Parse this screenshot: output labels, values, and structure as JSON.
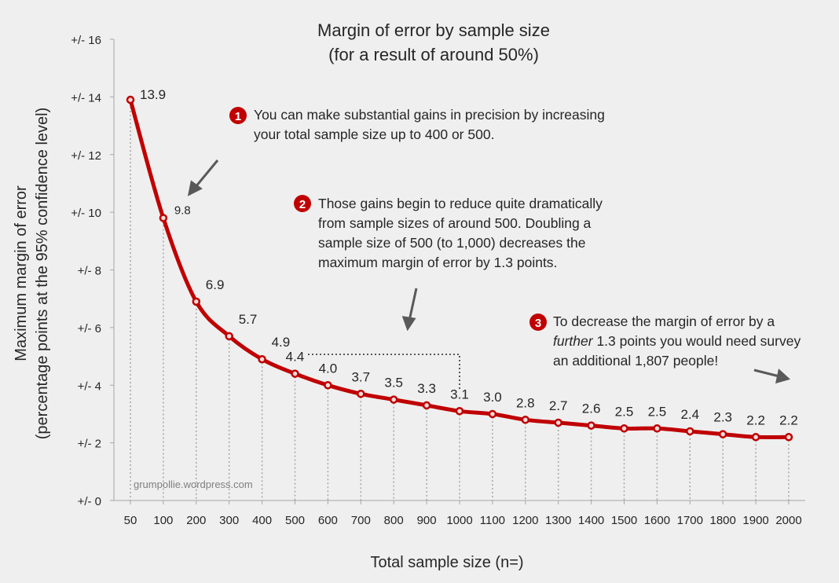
{
  "chart_data": {
    "type": "line",
    "title": "Margin of error by sample size",
    "subtitle": "(for a result of around 50%)",
    "xlabel": "Total sample size (n=)",
    "ylabel": "Maximum margin of error",
    "ylabel2": "(percentage points at the 95% confidence level)",
    "x": [
      "50",
      "100",
      "200",
      "300",
      "400",
      "500",
      "600",
      "700",
      "800",
      "900",
      "1000",
      "1100",
      "1200",
      "1300",
      "1400",
      "1500",
      "1600",
      "1700",
      "1800",
      "1900",
      "2000"
    ],
    "series": [
      {
        "values": [
          13.9,
          9.8,
          6.9,
          5.7,
          4.9,
          4.4,
          4.0,
          3.7,
          3.5,
          3.3,
          3.1,
          3.0,
          2.8,
          2.7,
          2.6,
          2.5,
          2.5,
          2.4,
          2.3,
          2.2,
          2.2
        ],
        "labels": [
          "13.9",
          "9.8",
          "6.9",
          "5.7",
          "4.9",
          "4.4",
          "4.0",
          "3.7",
          "3.5",
          "3.3",
          "3.1",
          "3.0",
          "2.8",
          "2.7",
          "2.6",
          "2.5",
          "2.5",
          "2.4",
          "2.3",
          "2.2",
          "2.2"
        ],
        "color": "#c00000"
      }
    ],
    "ylim": [
      0,
      16
    ],
    "yticks": [
      {
        "value": 0,
        "label": "+/- 0"
      },
      {
        "value": 2,
        "label": "+/- 2"
      },
      {
        "value": 4,
        "label": "+/- 4"
      },
      {
        "value": 6,
        "label": "+/- 6"
      },
      {
        "value": 8,
        "label": "+/- 8"
      },
      {
        "value": 10,
        "label": "+/- 10"
      },
      {
        "value": 12,
        "label": "+/- 12"
      },
      {
        "value": 14,
        "label": "+/- 14"
      },
      {
        "value": 16,
        "label": "+/- 16"
      }
    ],
    "grid": false,
    "legend": "none",
    "watermark": "grumpollie.wordpress.com",
    "annotations": [
      {
        "number": "1",
        "lines": [
          "You can make substantial gains in precision by increasing",
          "your total sample size up to 400 or 500."
        ]
      },
      {
        "number": "2",
        "lines": [
          "Those gains begin to reduce quite dramatically",
          "from sample sizes of around 500. Doubling a",
          "sample size of 500 (to 1,000) decreases the",
          "maximum margin of error by 1.3 points."
        ]
      },
      {
        "number": "3",
        "line1": "To decrease the margin of error by a",
        "line2_emph": "further",
        "line2_rest": " 1.3 points you would need survey",
        "line3": "an additional 1,807 people!"
      }
    ],
    "colors": {
      "line": "#c00000",
      "badge": "#c00000",
      "axis": "#a6a6a6",
      "text": "#262626",
      "background": "#efefef"
    }
  }
}
